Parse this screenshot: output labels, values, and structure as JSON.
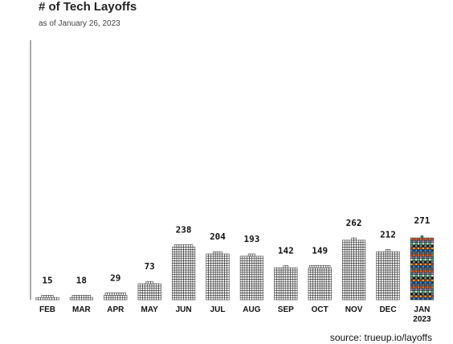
{
  "title": "# of Tech Layoffs",
  "subtitle": "as of January 26, 2023",
  "source": "source: trueup.io/layoffs",
  "chart_data": {
    "type": "bar",
    "style": "waffle-column (stacked squares)",
    "categories": [
      "FEB",
      "MAR",
      "APR",
      "MAY",
      "JUN",
      "JUL",
      "AUG",
      "SEP",
      "OCT",
      "NOV",
      "DEC",
      "JAN 2023"
    ],
    "values": [
      15,
      18,
      29,
      73,
      238,
      204,
      193,
      142,
      149,
      262,
      212,
      271
    ],
    "highlight_category": "JAN 2023",
    "title": "# of Tech Layoffs",
    "xlabel": "",
    "ylabel": "",
    "grid": false,
    "data_labels": true
  },
  "colors": {
    "cell_fill": "#ffffff",
    "cell_stroke": "#333333",
    "axis": "#555555",
    "highlight_palette": [
      "#1f3a93",
      "#e74c3c",
      "#2ecc71",
      "#f1c40f",
      "#8e44ad",
      "#16a085",
      "#111111",
      "#3498db",
      "#e67e22",
      "#ecf0f1",
      "#c0392b",
      "#27ae60",
      "#ff66cc",
      "#7f8c8d"
    ]
  }
}
